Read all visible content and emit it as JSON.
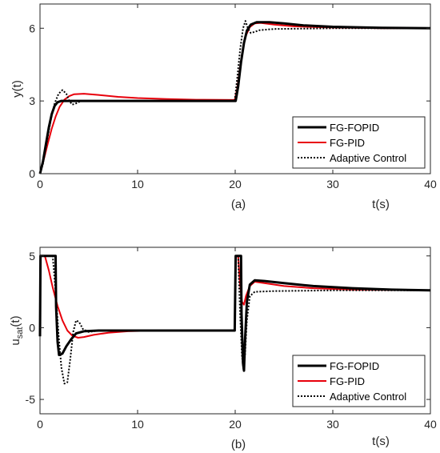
{
  "chart_data": [
    {
      "type": "line",
      "panel_label": "(a)",
      "xlabel": "t(s)",
      "ylabel": "y(t)",
      "xlim": [
        0,
        40
      ],
      "ylim": [
        0,
        7
      ],
      "xticks": [
        0,
        10,
        20,
        30,
        40
      ],
      "yticks": [
        0,
        3,
        6
      ],
      "legend_position": "bottom-right",
      "grid": false,
      "series": [
        {
          "name": "FG-FOPID",
          "color": "#000000",
          "style": "solid-thick",
          "points": [
            [
              0,
              0
            ],
            [
              0.3,
              0.5
            ],
            [
              0.6,
              1.2
            ],
            [
              0.9,
              1.9
            ],
            [
              1.2,
              2.45
            ],
            [
              1.5,
              2.8
            ],
            [
              1.8,
              2.95
            ],
            [
              2.2,
              3.0
            ],
            [
              4,
              3.0
            ],
            [
              10,
              3.0
            ],
            [
              19.95,
              3.0
            ],
            [
              20.05,
              3.0
            ],
            [
              20.3,
              3.6
            ],
            [
              20.6,
              4.6
            ],
            [
              20.9,
              5.4
            ],
            [
              21.2,
              5.9
            ],
            [
              21.6,
              6.15
            ],
            [
              22.2,
              6.25
            ],
            [
              23.5,
              6.25
            ],
            [
              25,
              6.2
            ],
            [
              27,
              6.12
            ],
            [
              30,
              6.06
            ],
            [
              35,
              6.02
            ],
            [
              40,
              6.0
            ]
          ]
        },
        {
          "name": "FG-PID",
          "color": "#e8000b",
          "style": "solid",
          "points": [
            [
              0,
              0
            ],
            [
              0.4,
              0.6
            ],
            [
              0.8,
              1.25
            ],
            [
              1.2,
              1.85
            ],
            [
              1.6,
              2.35
            ],
            [
              2.0,
              2.75
            ],
            [
              2.5,
              3.05
            ],
            [
              3.0,
              3.2
            ],
            [
              3.5,
              3.28
            ],
            [
              4.5,
              3.3
            ],
            [
              6,
              3.25
            ],
            [
              8,
              3.17
            ],
            [
              10,
              3.12
            ],
            [
              13,
              3.08
            ],
            [
              16,
              3.05
            ],
            [
              19.95,
              3.04
            ],
            [
              20.2,
              3.5
            ],
            [
              20.5,
              4.4
            ],
            [
              20.8,
              5.2
            ],
            [
              21.1,
              5.7
            ],
            [
              21.5,
              6.05
            ],
            [
              22,
              6.2
            ],
            [
              22.6,
              6.22
            ],
            [
              24,
              6.15
            ],
            [
              26,
              6.08
            ],
            [
              30,
              6.03
            ],
            [
              35,
              6.0
            ],
            [
              40,
              6.0
            ]
          ]
        },
        {
          "name": "Adaptive Control",
          "color": "#000000",
          "style": "dotted",
          "points": [
            [
              0,
              0
            ],
            [
              0.3,
              0.4
            ],
            [
              0.7,
              1.3
            ],
            [
              1.1,
              2.2
            ],
            [
              1.5,
              2.9
            ],
            [
              1.9,
              3.3
            ],
            [
              2.3,
              3.45
            ],
            [
              2.7,
              3.3
            ],
            [
              3.0,
              3.0
            ],
            [
              3.3,
              2.85
            ],
            [
              3.7,
              2.9
            ],
            [
              4.2,
              3.0
            ],
            [
              10,
              3.0
            ],
            [
              19.95,
              3.0
            ],
            [
              20.2,
              3.9
            ],
            [
              20.5,
              5.1
            ],
            [
              20.8,
              6.0
            ],
            [
              21.05,
              6.3
            ],
            [
              21.3,
              6.0
            ],
            [
              21.6,
              5.8
            ],
            [
              22,
              5.85
            ],
            [
              22.5,
              5.92
            ],
            [
              24,
              5.97
            ],
            [
              30,
              6.0
            ],
            [
              40,
              6.0
            ]
          ]
        }
      ]
    },
    {
      "type": "line",
      "panel_label": "(b)",
      "xlabel": "t(s)",
      "ylabel_main": "u",
      "ylabel_sub": "sat",
      "ylabel_suffix": "(t)",
      "xlim": [
        0,
        40
      ],
      "ylim": [
        -6,
        5.6
      ],
      "xticks": [
        0,
        10,
        20,
        30,
        40
      ],
      "yticks": [
        -5,
        0,
        5
      ],
      "legend_position": "bottom-right",
      "grid": false,
      "series": [
        {
          "name": "FG-FOPID",
          "color": "#000000",
          "style": "solid-thick",
          "points": [
            [
              0,
              -0.6
            ],
            [
              0.05,
              5.0
            ],
            [
              1.6,
              5.0
            ],
            [
              1.65,
              1.5
            ],
            [
              1.8,
              -1.0
            ],
            [
              1.95,
              -1.9
            ],
            [
              2.3,
              -1.8
            ],
            [
              2.7,
              -1.3
            ],
            [
              3.2,
              -0.8
            ],
            [
              3.7,
              -0.4
            ],
            [
              4.5,
              -0.25
            ],
            [
              6,
              -0.2
            ],
            [
              19.95,
              -0.2
            ],
            [
              20.05,
              5.0
            ],
            [
              20.6,
              5.0
            ],
            [
              20.65,
              1.0
            ],
            [
              20.8,
              -2.5
            ],
            [
              20.9,
              -3.0
            ],
            [
              21.0,
              -1.0
            ],
            [
              21.2,
              1.8
            ],
            [
              21.5,
              3.0
            ],
            [
              22,
              3.3
            ],
            [
              23,
              3.25
            ],
            [
              25,
              3.1
            ],
            [
              28,
              2.9
            ],
            [
              32,
              2.75
            ],
            [
              36,
              2.65
            ],
            [
              40,
              2.6
            ]
          ]
        },
        {
          "name": "FG-PID",
          "color": "#e8000b",
          "style": "solid",
          "points": [
            [
              0,
              -0.2
            ],
            [
              0.05,
              5.0
            ],
            [
              0.5,
              5.0
            ],
            [
              0.9,
              4.0
            ],
            [
              1.3,
              2.8
            ],
            [
              1.8,
              1.5
            ],
            [
              2.3,
              0.5
            ],
            [
              2.8,
              -0.2
            ],
            [
              3.3,
              -0.55
            ],
            [
              3.9,
              -0.7
            ],
            [
              4.5,
              -0.65
            ],
            [
              5.5,
              -0.5
            ],
            [
              7,
              -0.35
            ],
            [
              9,
              -0.25
            ],
            [
              12,
              -0.2
            ],
            [
              19.95,
              -0.2
            ],
            [
              20.05,
              5.0
            ],
            [
              20.3,
              5.0
            ],
            [
              20.5,
              3.0
            ],
            [
              20.7,
              1.8
            ],
            [
              20.9,
              1.6
            ],
            [
              21.1,
              2.2
            ],
            [
              21.5,
              2.9
            ],
            [
              22,
              3.2
            ],
            [
              23,
              3.1
            ],
            [
              25,
              2.9
            ],
            [
              28,
              2.75
            ],
            [
              32,
              2.65
            ],
            [
              40,
              2.6
            ]
          ]
        },
        {
          "name": "Adaptive Control",
          "color": "#000000",
          "style": "dotted",
          "points": [
            [
              0,
              -0.2
            ],
            [
              0.05,
              5.0
            ],
            [
              1.3,
              5.0
            ],
            [
              1.6,
              2.5
            ],
            [
              1.9,
              -0.5
            ],
            [
              2.2,
              -2.8
            ],
            [
              2.5,
              -3.9
            ],
            [
              2.8,
              -3.8
            ],
            [
              3.1,
              -2.2
            ],
            [
              3.4,
              -0.3
            ],
            [
              3.7,
              0.5
            ],
            [
              4.0,
              0.4
            ],
            [
              4.4,
              -0.1
            ],
            [
              5,
              -0.3
            ],
            [
              6,
              -0.2
            ],
            [
              19.95,
              -0.2
            ],
            [
              20.05,
              5.0
            ],
            [
              20.3,
              5.0
            ],
            [
              20.5,
              1.0
            ],
            [
              20.7,
              -2.0
            ],
            [
              20.85,
              -2.9
            ],
            [
              21.0,
              -2.0
            ],
            [
              21.2,
              0.5
            ],
            [
              21.5,
              2.2
            ],
            [
              22,
              2.5
            ],
            [
              24,
              2.55
            ],
            [
              30,
              2.6
            ],
            [
              40,
              2.6
            ]
          ]
        }
      ]
    }
  ]
}
